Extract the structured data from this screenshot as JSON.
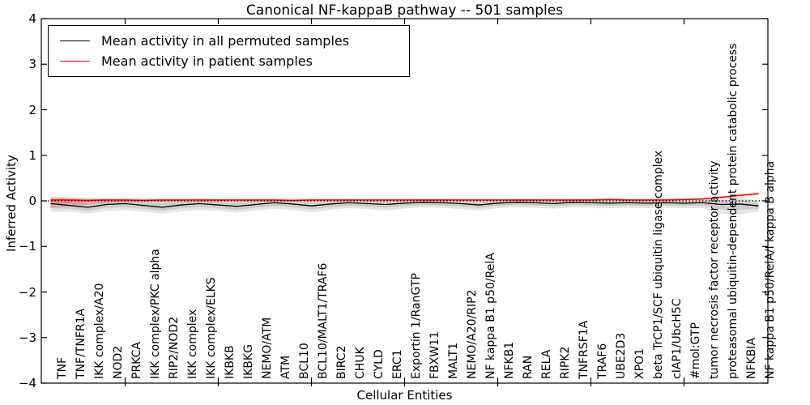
{
  "title": "Canonical NF-kappaB pathway -- 501 samples",
  "legend": {
    "items": [
      {
        "label": "Mean activity in all permuted samples",
        "color": "#000000"
      },
      {
        "label": "Mean activity in patient samples",
        "color": "#ff0000"
      }
    ],
    "position": "upper left"
  },
  "chart_data": {
    "type": "line",
    "title": "Canonical NF-kappaB pathway -- 501 samples",
    "xlabel": "Cellular Entities",
    "ylabel": "Inferred Activity",
    "ylim": [
      -4,
      4
    ],
    "yticks": [
      4,
      3,
      2,
      1,
      0,
      -1,
      -2,
      -3,
      -4
    ],
    "ytick_labels": [
      "4",
      "3",
      "2",
      "1",
      "0",
      "−1",
      "−2",
      "−3",
      "−4"
    ],
    "grid": false,
    "zero_line_style": "dotted",
    "legend_position": "upper left",
    "categories": [
      "TNF",
      "TNF/TNFR1A",
      "IKK complex/A20",
      "NOD2",
      "PRKCA",
      "IKK complex/PKC alpha",
      "RIP2/NOD2",
      "IKK complex",
      "IKK complex/ELKS",
      "IKBKB",
      "IKBKG",
      "NEMO/ATM",
      "ATM",
      "BCL10",
      "BCL10/MALT1/TRAF6",
      "BIRC2",
      "CHUK",
      "CYLD",
      "ERC1",
      "Exportin 1/RanGTP",
      "FBXW11",
      "MALT1",
      "NEMO/A20/RIP2",
      "NF kappa B1 p50/RelA",
      "NFKB1",
      "RAN",
      "RELA",
      "RIPK2",
      "TNFRSF1A",
      "TRAF6",
      "UBE2D3",
      "XPO1",
      "beta TrCP1/SCF ubiquitin ligase complex",
      "cIAP1/UbcH5C",
      "#mol:GTP",
      "tumor necrosis factor receptor activity",
      "proteasomal ubiquitin-dependent protein catabolic process",
      "NFKBIA",
      "NF kappa B1 p50/RelA/I kappa B alpha"
    ],
    "series": [
      {
        "name": "Mean activity in all permuted samples",
        "color": "#000000",
        "line_width": 1.3,
        "values": [
          -0.06,
          -0.1,
          -0.14,
          -0.08,
          -0.06,
          -0.1,
          -0.14,
          -0.09,
          -0.06,
          -0.09,
          -0.12,
          -0.08,
          -0.04,
          -0.07,
          -0.11,
          -0.07,
          -0.04,
          -0.06,
          -0.08,
          -0.05,
          -0.03,
          -0.04,
          -0.06,
          -0.09,
          -0.05,
          -0.03,
          -0.04,
          -0.06,
          -0.03,
          -0.04,
          -0.05,
          -0.04,
          -0.05,
          -0.04,
          -0.05,
          -0.04,
          -0.08,
          -0.07,
          -0.11
        ],
        "band_upper": [
          0.05,
          0.04,
          0.03,
          0.04,
          0.05,
          0.04,
          0.03,
          0.04,
          0.05,
          0.04,
          0.03,
          0.04,
          0.05,
          0.04,
          0.03,
          0.04,
          0.05,
          0.04,
          0.04,
          0.04,
          0.05,
          0.05,
          0.04,
          0.03,
          0.04,
          0.05,
          0.05,
          0.04,
          0.05,
          0.05,
          0.04,
          0.05,
          0.04,
          0.05,
          0.04,
          0.06,
          0.1,
          0.09,
          0.01
        ],
        "band_lower": [
          -0.24,
          -0.24,
          -0.28,
          -0.22,
          -0.2,
          -0.24,
          -0.28,
          -0.23,
          -0.2,
          -0.22,
          -0.26,
          -0.21,
          -0.17,
          -0.2,
          -0.25,
          -0.2,
          -0.16,
          -0.18,
          -0.21,
          -0.17,
          -0.14,
          -0.15,
          -0.18,
          -0.21,
          -0.16,
          -0.14,
          -0.15,
          -0.17,
          -0.14,
          -0.15,
          -0.16,
          -0.15,
          -0.16,
          -0.15,
          -0.16,
          -0.16,
          -0.28,
          -0.3,
          -0.23
        ],
        "band_color": "rgba(0,0,0,0.10)"
      },
      {
        "name": "Mean activity in patient samples",
        "color": "#ff0000",
        "line_width": 1.6,
        "values": [
          0.02,
          0.02,
          0.01,
          0.02,
          0.02,
          0.01,
          0.02,
          0.02,
          0.02,
          0.02,
          0.02,
          0.02,
          0.02,
          0.01,
          0.02,
          0.02,
          0.02,
          0.02,
          0.02,
          0.02,
          0.02,
          0.02,
          0.02,
          0.02,
          0.02,
          0.02,
          0.02,
          0.02,
          0.02,
          0.02,
          0.03,
          0.02,
          0.02,
          0.02,
          0.03,
          0.04,
          0.08,
          0.12,
          0.16
        ],
        "band_upper": [
          0.1,
          0.08,
          0.06,
          0.05,
          0.05,
          0.04,
          0.05,
          0.04,
          0.04,
          0.04,
          0.04,
          0.04,
          0.04,
          0.03,
          0.04,
          0.04,
          0.04,
          0.04,
          0.04,
          0.04,
          0.04,
          0.04,
          0.04,
          0.04,
          0.04,
          0.04,
          0.04,
          0.04,
          0.04,
          0.04,
          0.05,
          0.04,
          0.04,
          0.04,
          0.05,
          0.06,
          0.1,
          0.14,
          0.19
        ],
        "band_lower": [
          -0.16,
          -0.12,
          -0.08,
          -0.05,
          -0.04,
          -0.03,
          -0.03,
          -0.02,
          -0.02,
          -0.02,
          -0.01,
          -0.01,
          -0.01,
          -0.01,
          -0.01,
          0.0,
          0.0,
          0.0,
          0.0,
          0.0,
          0.0,
          0.0,
          0.0,
          0.0,
          0.0,
          0.0,
          0.0,
          0.0,
          0.0,
          0.0,
          0.01,
          0.0,
          0.0,
          0.0,
          0.01,
          0.02,
          0.06,
          0.1,
          0.13
        ],
        "band_color": "rgba(255,0,0,0.16)"
      }
    ]
  }
}
